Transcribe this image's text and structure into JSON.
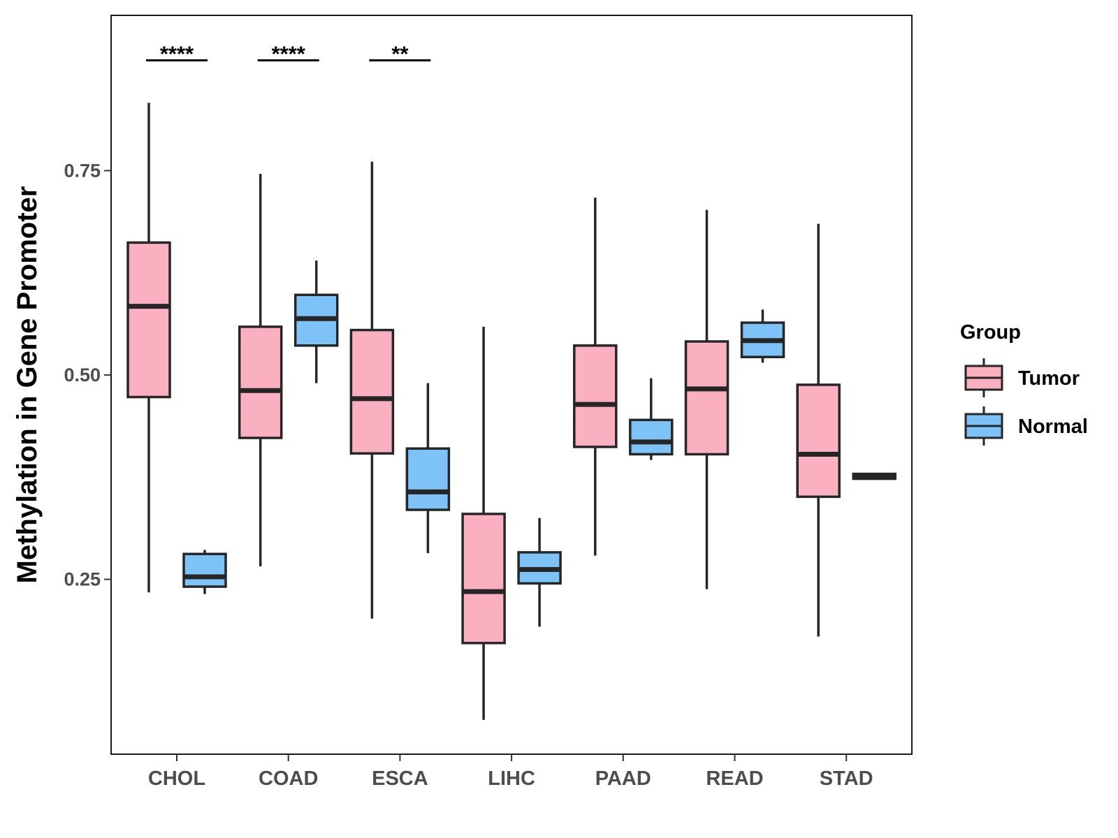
{
  "chart_data": {
    "type": "boxplot",
    "title": "",
    "xlabel": "",
    "ylabel": "Methylation in Gene Promoter",
    "ylim": [
      0.036,
      0.94
    ],
    "y_ticks": [
      {
        "value": 0.25,
        "label": "0.25"
      },
      {
        "value": 0.5,
        "label": "0.50"
      },
      {
        "value": 0.75,
        "label": "0.75"
      }
    ],
    "categories": [
      "CHOL",
      "COAD",
      "ESCA",
      "LIHC",
      "PAAD",
      "READ",
      "STAD"
    ],
    "legend": {
      "title": "Group",
      "position": "right",
      "items": [
        {
          "name": "Tumor",
          "color": "#FBB0C2"
        },
        {
          "name": "Normal",
          "color": "#7DC3F7"
        }
      ]
    },
    "series": [
      {
        "name": "Tumor",
        "color": "#FBB0C2",
        "boxes": [
          {
            "category": "CHOL",
            "lower_whisker": 0.234,
            "q1": 0.473,
            "median": 0.584,
            "q3": 0.662,
            "upper_whisker": 0.833
          },
          {
            "category": "COAD",
            "lower_whisker": 0.266,
            "q1": 0.423,
            "median": 0.481,
            "q3": 0.559,
            "upper_whisker": 0.746
          },
          {
            "category": "ESCA",
            "lower_whisker": 0.202,
            "q1": 0.404,
            "median": 0.471,
            "q3": 0.555,
            "upper_whisker": 0.761
          },
          {
            "category": "LIHC",
            "lower_whisker": 0.078,
            "q1": 0.172,
            "median": 0.235,
            "q3": 0.33,
            "upper_whisker": 0.559
          },
          {
            "category": "PAAD",
            "lower_whisker": 0.279,
            "q1": 0.412,
            "median": 0.464,
            "q3": 0.536,
            "upper_whisker": 0.717
          },
          {
            "category": "READ",
            "lower_whisker": 0.238,
            "q1": 0.403,
            "median": 0.483,
            "q3": 0.541,
            "upper_whisker": 0.702
          },
          {
            "category": "STAD",
            "lower_whisker": 0.18,
            "q1": 0.351,
            "median": 0.403,
            "q3": 0.488,
            "upper_whisker": 0.685
          }
        ]
      },
      {
        "name": "Normal",
        "color": "#7DC3F7",
        "boxes": [
          {
            "category": "CHOL",
            "lower_whisker": 0.232,
            "q1": 0.241,
            "median": 0.253,
            "q3": 0.281,
            "upper_whisker": 0.286
          },
          {
            "category": "COAD",
            "lower_whisker": 0.49,
            "q1": 0.536,
            "median": 0.569,
            "q3": 0.598,
            "upper_whisker": 0.64
          },
          {
            "category": "ESCA",
            "lower_whisker": 0.282,
            "q1": 0.335,
            "median": 0.357,
            "q3": 0.41,
            "upper_whisker": 0.49
          },
          {
            "category": "LIHC",
            "lower_whisker": 0.192,
            "q1": 0.245,
            "median": 0.262,
            "q3": 0.283,
            "upper_whisker": 0.325
          },
          {
            "category": "PAAD",
            "lower_whisker": 0.396,
            "q1": 0.403,
            "median": 0.418,
            "q3": 0.445,
            "upper_whisker": 0.496
          },
          {
            "category": "READ",
            "lower_whisker": 0.515,
            "q1": 0.522,
            "median": 0.542,
            "q3": 0.564,
            "upper_whisker": 0.58
          },
          {
            "category": "STAD",
            "lower_whisker": 0.373,
            "q1": 0.373,
            "median": 0.376,
            "q3": 0.379,
            "upper_whisker": 0.379
          }
        ]
      }
    ],
    "annotations": [
      {
        "category": "CHOL",
        "text": "****",
        "y": 0.885
      },
      {
        "category": "COAD",
        "text": "****",
        "y": 0.885
      },
      {
        "category": "ESCA",
        "text": "**",
        "y": 0.885
      }
    ]
  }
}
